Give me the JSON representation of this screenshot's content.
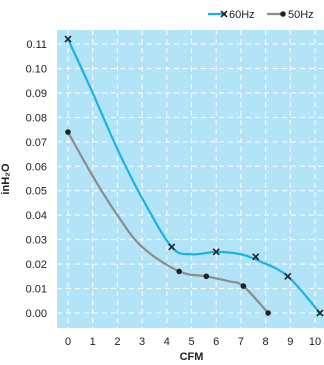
{
  "chart_data": {
    "type": "line",
    "title": "",
    "xlabel": "CFM",
    "ylabel": "inH₂O",
    "xlim": [
      0,
      10
    ],
    "ylim": [
      0,
      0.11
    ],
    "x_ticks": [
      "0",
      "1",
      "2",
      "3",
      "4",
      "5",
      "6",
      "7",
      "8",
      "9",
      "10"
    ],
    "y_ticks": [
      "0.00",
      "0.01",
      "0.02",
      "0.03",
      "0.04",
      "0.05",
      "0.06",
      "0.07",
      "0.08",
      "0.09",
      "0.10",
      "0.11"
    ],
    "grid": true,
    "legend_position": "top-right",
    "series": [
      {
        "name": "60Hz",
        "color": "#1ab3e6",
        "marker": "x",
        "x": [
          0,
          1,
          2,
          3,
          4.2,
          5,
          6,
          7,
          7.8,
          8.9,
          10.2
        ],
        "y": [
          0.112,
          0.09,
          0.067,
          0.047,
          0.027,
          0.024,
          0.025,
          0.024,
          0.021,
          0.015,
          0.0
        ],
        "marked_points": [
          {
            "x": 0,
            "y": 0.112
          },
          {
            "x": 4.2,
            "y": 0.027
          },
          {
            "x": 6.0,
            "y": 0.025
          },
          {
            "x": 7.6,
            "y": 0.023
          },
          {
            "x": 8.9,
            "y": 0.015
          },
          {
            "x": 10.2,
            "y": 0.0
          }
        ]
      },
      {
        "name": "50Hz",
        "color": "#8c8c8c",
        "marker": "dot",
        "x": [
          0,
          1,
          2,
          3,
          4.5,
          5.6,
          6.5,
          7.1,
          8.1
        ],
        "y": [
          0.074,
          0.056,
          0.04,
          0.027,
          0.017,
          0.015,
          0.013,
          0.011,
          0.0
        ],
        "marked_points": [
          {
            "x": 0,
            "y": 0.074
          },
          {
            "x": 4.5,
            "y": 0.017
          },
          {
            "x": 5.6,
            "y": 0.015
          },
          {
            "x": 7.1,
            "y": 0.011
          },
          {
            "x": 8.1,
            "y": 0.0
          }
        ]
      }
    ],
    "plot_background": "#b3e3f7",
    "grid_color": "#ffffff"
  }
}
